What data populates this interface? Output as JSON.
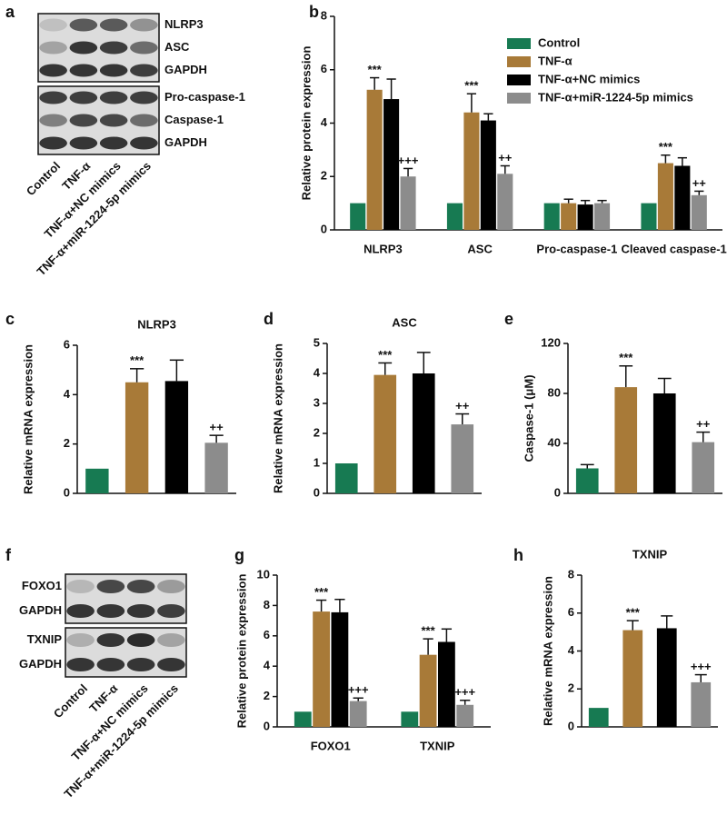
{
  "blots": [
    {
      "panel": "a",
      "bands": [
        [
          "NLRP3",
          "ASC",
          "GAPDH"
        ],
        [
          "Pro-caspase-1",
          "Caspase-1",
          "GAPDH"
        ]
      ],
      "lanes": [
        "Control",
        "TNF-α",
        "TNF-α+NC mimics",
        "TNF-α+miR-1224-5p mimics"
      ]
    },
    {
      "panel": "f",
      "bands": [
        [
          "FOXO1",
          "GAPDH"
        ],
        [
          "TXNIP",
          "GAPDH"
        ]
      ],
      "lanes": [
        "Control",
        "TNF-α",
        "TNF-α+NC mimics",
        "TNF-α+miR-1224-5p mimics"
      ]
    }
  ],
  "chart_data": [
    {
      "type": "bar",
      "panel": "b",
      "y_label": "Relative protein expression",
      "ylim": [
        0,
        8
      ],
      "yticks": [
        0,
        2,
        4,
        6,
        8
      ],
      "legend": "upper right",
      "categories": [
        "NLRP3",
        "ASC",
        "Pro-caspase-1",
        "Cleaved caspase-1"
      ],
      "series": [
        {
          "name": "Control",
          "color": "#177a52",
          "values": [
            1,
            1,
            1,
            1
          ],
          "errors": [
            null,
            null,
            null,
            null
          ],
          "annotations": [
            null,
            null,
            null,
            null
          ]
        },
        {
          "name": "TNF-α",
          "color": "#a87a38",
          "values": [
            5.25,
            4.4,
            1.0,
            2.5
          ],
          "errors": [
            0.45,
            0.7,
            0.15,
            0.3
          ],
          "annotations": [
            "***",
            "***",
            null,
            "***"
          ]
        },
        {
          "name": "TNF-α+NC mimics",
          "color": "#000000",
          "values": [
            4.9,
            4.1,
            0.95,
            2.4
          ],
          "errors": [
            0.75,
            0.25,
            0.15,
            0.3
          ],
          "annotations": [
            null,
            null,
            null,
            null
          ]
        },
        {
          "name": "TNF-α+miR-1224-5p mimics",
          "color": "#8c8c8c",
          "values": [
            2.0,
            2.1,
            1.0,
            1.3
          ],
          "errors": [
            0.3,
            0.3,
            0.1,
            0.15
          ],
          "annotations": [
            "+++",
            "++",
            null,
            "++"
          ]
        }
      ]
    },
    {
      "type": "bar",
      "panel": "c",
      "title": "NLRP3",
      "y_label": "Relative mRNA expression",
      "ylim": [
        0,
        6
      ],
      "yticks": [
        0,
        2,
        4,
        6
      ],
      "values": [
        1,
        4.5,
        4.55,
        2.05
      ],
      "errors": [
        null,
        0.55,
        0.85,
        0.3
      ],
      "annotations": [
        null,
        "***",
        null,
        "++"
      ],
      "colors": [
        "#177a52",
        "#a87a38",
        "#000000",
        "#8c8c8c"
      ]
    },
    {
      "type": "bar",
      "panel": "d",
      "title": "ASC",
      "y_label": "Relative mRNA expression",
      "ylim": [
        0,
        5
      ],
      "yticks": [
        0,
        1,
        2,
        3,
        4,
        5
      ],
      "values": [
        1,
        3.95,
        4.0,
        2.3
      ],
      "errors": [
        null,
        0.4,
        0.7,
        0.35
      ],
      "annotations": [
        null,
        "***",
        null,
        "++"
      ],
      "colors": [
        "#177a52",
        "#a87a38",
        "#000000",
        "#8c8c8c"
      ]
    },
    {
      "type": "bar",
      "panel": "e",
      "y_label": "Caspase-1 (μM)",
      "ylim": [
        0,
        120
      ],
      "yticks": [
        0,
        40,
        80,
        120
      ],
      "values": [
        20,
        85,
        80,
        41
      ],
      "errors": [
        3,
        17,
        12,
        8
      ],
      "annotations": [
        null,
        "***",
        null,
        "++"
      ],
      "colors": [
        "#177a52",
        "#a87a38",
        "#000000",
        "#8c8c8c"
      ]
    },
    {
      "type": "bar",
      "panel": "g",
      "y_label": "Relative protein expression",
      "ylim": [
        0,
        10
      ],
      "yticks": [
        0,
        2,
        4,
        6,
        8,
        10
      ],
      "categories": [
        "FOXO1",
        "TXNIP"
      ],
      "series": [
        {
          "name": "Control",
          "color": "#177a52",
          "values": [
            1,
            1
          ],
          "errors": [
            null,
            null
          ],
          "annotations": [
            null,
            null
          ]
        },
        {
          "name": "TNF-α",
          "color": "#a87a38",
          "values": [
            7.6,
            4.75
          ],
          "errors": [
            0.75,
            1.05
          ],
          "annotations": [
            "***",
            "***"
          ]
        },
        {
          "name": "TNF-α+NC mimics",
          "color": "#000000",
          "values": [
            7.55,
            5.6
          ],
          "errors": [
            0.85,
            0.85
          ],
          "annotations": [
            null,
            null
          ]
        },
        {
          "name": "TNF-α+miR-1224-5p mimics",
          "color": "#8c8c8c",
          "values": [
            1.7,
            1.45
          ],
          "errors": [
            0.2,
            0.3
          ],
          "annotations": [
            "+++",
            "+++"
          ]
        }
      ]
    },
    {
      "type": "bar",
      "panel": "h",
      "title": "TXNIP",
      "y_label": "Relative mRNA expression",
      "ylim": [
        0,
        8
      ],
      "yticks": [
        0,
        2,
        4,
        6,
        8
      ],
      "values": [
        1,
        5.1,
        5.2,
        2.35
      ],
      "errors": [
        null,
        0.5,
        0.65,
        0.4
      ],
      "annotations": [
        null,
        "***",
        null,
        "+++"
      ],
      "colors": [
        "#177a52",
        "#a87a38",
        "#000000",
        "#8c8c8c"
      ]
    }
  ]
}
